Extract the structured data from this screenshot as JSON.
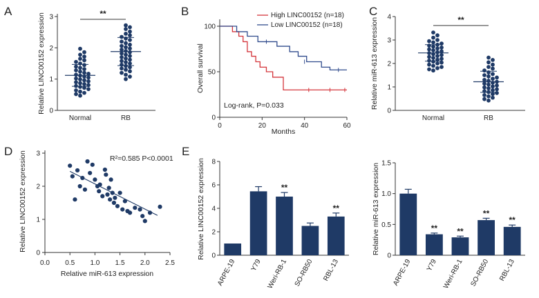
{
  "colors": {
    "navy": "#1f3a66",
    "red": "#d4343a",
    "blue": "#2f4a8c",
    "axis": "#333333",
    "text": "#222222"
  },
  "chart_data": [
    {
      "panel": "A",
      "type": "scatter",
      "ylabel": "Relative LINC00152 expression",
      "ylim": [
        0,
        3
      ],
      "yticks": [
        "0",
        "1",
        "2",
        "3"
      ],
      "groups": [
        {
          "label": "Normal",
          "mean": 1.12,
          "sd": 0.35,
          "values": [
            1.97,
            1.86,
            1.78,
            1.72,
            1.65,
            1.6,
            1.55,
            1.5,
            1.45,
            1.4,
            1.36,
            1.32,
            1.28,
            1.24,
            1.2,
            1.17,
            1.14,
            1.11,
            1.08,
            1.05,
            1.02,
            0.99,
            0.96,
            0.93,
            0.9,
            0.87,
            0.84,
            0.81,
            0.78,
            0.75,
            0.72,
            0.68,
            0.64,
            0.6,
            0.56,
            0.52,
            0.47
          ]
        },
        {
          "label": "RB",
          "mean": 1.88,
          "sd": 0.45,
          "values": [
            2.72,
            2.66,
            2.6,
            2.52,
            2.45,
            2.4,
            2.35,
            2.3,
            2.25,
            2.2,
            2.15,
            2.1,
            2.06,
            2.02,
            1.98,
            1.94,
            1.9,
            1.86,
            1.82,
            1.78,
            1.74,
            1.7,
            1.66,
            1.62,
            1.58,
            1.54,
            1.5,
            1.46,
            1.42,
            1.38,
            1.34,
            1.3,
            1.25,
            1.2,
            1.14,
            1.08,
            1.0
          ]
        }
      ],
      "significance": "**"
    },
    {
      "panel": "B",
      "type": "line",
      "xlabel": "Months",
      "ylabel": "Overall survival",
      "xlim": [
        0,
        60
      ],
      "ylim": [
        0,
        100
      ],
      "xticks": [
        "0",
        "20",
        "40",
        "60"
      ],
      "yticks": [
        "0",
        "50",
        "100"
      ],
      "series": [
        {
          "name": "High LINC00152 (n=18)",
          "color": "#d4343a",
          "x": [
            0,
            6,
            9,
            11,
            13,
            15,
            17,
            19,
            22,
            25,
            30,
            60
          ],
          "y": [
            100,
            94,
            89,
            83,
            72,
            67,
            61,
            55,
            50,
            44,
            30,
            30
          ],
          "censor_x": [
            42,
            52,
            59
          ],
          "censor_y": [
            30,
            30,
            30
          ]
        },
        {
          "name": "Low LINC00152 (n=18)",
          "color": "#2f4a8c",
          "x": [
            0,
            8,
            13,
            18,
            22,
            27,
            33,
            37,
            41,
            45,
            48,
            52,
            60
          ],
          "y": [
            100,
            94,
            89,
            83,
            83,
            78,
            72,
            67,
            61,
            61,
            55,
            52,
            52
          ],
          "censor_x": [
            22,
            40,
            56
          ],
          "censor_y": [
            83,
            61,
            52
          ]
        }
      ],
      "annotation": "Log-rank, P=0.033"
    },
    {
      "panel": "C",
      "type": "scatter",
      "ylabel": "Relative miR-613 expression",
      "ylim": [
        0,
        4
      ],
      "yticks": [
        "0",
        "1",
        "2",
        "3",
        "4"
      ],
      "groups": [
        {
          "label": "Normal",
          "mean": 2.45,
          "sd": 0.35,
          "values": [
            3.32,
            3.2,
            3.1,
            3.0,
            2.95,
            2.9,
            2.85,
            2.8,
            2.76,
            2.72,
            2.68,
            2.64,
            2.6,
            2.56,
            2.52,
            2.48,
            2.44,
            2.4,
            2.36,
            2.32,
            2.28,
            2.24,
            2.2,
            2.16,
            2.12,
            2.08,
            2.04,
            2.0,
            1.95,
            1.9,
            1.85,
            1.8,
            1.75,
            1.7
          ]
        },
        {
          "label": "RB",
          "mean": 1.22,
          "sd": 0.45,
          "values": [
            2.25,
            2.15,
            2.05,
            1.95,
            1.85,
            1.78,
            1.7,
            1.62,
            1.55,
            1.5,
            1.45,
            1.4,
            1.35,
            1.3,
            1.26,
            1.22,
            1.18,
            1.14,
            1.1,
            1.06,
            1.02,
            0.98,
            0.94,
            0.9,
            0.86,
            0.82,
            0.78,
            0.74,
            0.7,
            0.65,
            0.6,
            0.54,
            0.48,
            0.42
          ]
        }
      ],
      "significance": "**"
    },
    {
      "panel": "D",
      "type": "scatter",
      "xlabel": "Relative miR-613 expression",
      "ylabel": "Relative LINC00152 expression",
      "xlim": [
        0,
        2.5
      ],
      "ylim": [
        0,
        3
      ],
      "xticks": [
        "0.0",
        "0.5",
        "1.0",
        "1.5",
        "2.0",
        "2.5"
      ],
      "yticks": [
        "0",
        "1",
        "2",
        "3"
      ],
      "x": [
        0.5,
        0.55,
        0.6,
        0.65,
        0.7,
        0.75,
        0.8,
        0.85,
        0.9,
        0.95,
        1.0,
        1.05,
        1.08,
        1.1,
        1.15,
        1.2,
        1.22,
        1.25,
        1.28,
        1.3,
        1.32,
        1.35,
        1.38,
        1.4,
        1.45,
        1.5,
        1.55,
        1.6,
        1.65,
        1.7,
        1.8,
        1.9,
        1.95,
        2.0,
        2.1,
        2.3
      ],
      "y": [
        2.62,
        2.3,
        1.6,
        2.48,
        2.0,
        2.25,
        1.9,
        2.75,
        2.4,
        2.65,
        2.2,
        2.0,
        1.85,
        2.05,
        1.7,
        2.5,
        2.35,
        1.75,
        1.95,
        1.6,
        2.2,
        1.8,
        1.5,
        1.65,
        1.4,
        1.8,
        1.3,
        1.55,
        1.25,
        1.2,
        1.35,
        1.3,
        1.1,
        0.95,
        1.2,
        1.38
      ],
      "fit": {
        "x": [
          0.5,
          2.25
        ],
        "y": [
          2.45,
          1.12
        ]
      },
      "annotation": "R²=0.585 P<0.0001"
    },
    {
      "panel": "E",
      "type": "bar",
      "ylabel": "Relative LINC00152 expression",
      "categories": [
        "ARPE-19",
        "Y79",
        "Weri-RB-1",
        "SO-RB50",
        "RBL-13"
      ],
      "values": [
        1.0,
        5.45,
        5.0,
        2.5,
        3.3
      ],
      "errors": [
        0,
        0.4,
        0.35,
        0.25,
        0.3
      ],
      "significance": [
        "",
        "",
        "**",
        "",
        "**"
      ],
      "ylim": [
        0,
        8
      ],
      "yticks": [
        "0",
        "2",
        "4",
        "6",
        "8"
      ]
    },
    {
      "panel": "",
      "type": "bar",
      "ylabel": "Relative miR-613 expression",
      "categories": [
        "ARPE-19",
        "Y79",
        "Weri-RB-1",
        "SO-RB50",
        "RBL-13"
      ],
      "values": [
        1.0,
        0.34,
        0.29,
        0.57,
        0.46
      ],
      "errors": [
        0.07,
        0.02,
        0.02,
        0.03,
        0.03
      ],
      "significance": [
        "",
        "**",
        "**",
        "**",
        "**"
      ],
      "ylim": [
        0,
        1.5
      ],
      "yticks": [
        "0",
        "0.5",
        "1.0",
        "1.5"
      ]
    }
  ]
}
